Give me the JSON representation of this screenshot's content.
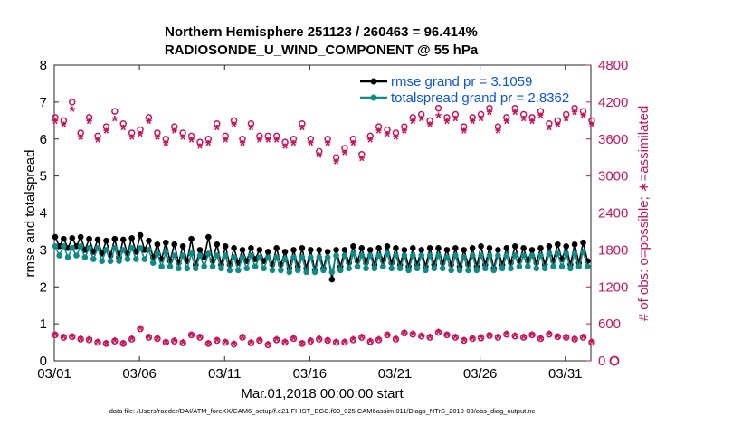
{
  "chart_data": {
    "type": "line",
    "title": "Northern Hemisphere 251123 / 260463 = 96.414%",
    "subtitle": "RADIOSONDE_U_WIND_COMPONENT @ 55 hPa",
    "xlabel": "Mar.01,2018 00:00:00 start",
    "ylabel_left": "rmse and totalspread",
    "ylabel_right": "# of obs: o=possible; ∗=assimilated",
    "footnote": "data file: /Users/raeder/DAI/ATM_forcXX/CAM6_setup/f.e21.FHIST_BGC.f09_025.CAM6assim.011/Diags_NTrS_2018-03/obs_diag_output.nc",
    "x_range_days": [
      0,
      31.5
    ],
    "ylim_left": [
      0,
      8
    ],
    "ylim_right": [
      0,
      4800
    ],
    "x_tick_labels": [
      "03/01",
      "03/06",
      "03/11",
      "03/16",
      "03/21",
      "03/26",
      "03/31"
    ],
    "x_tick_days": [
      0,
      5,
      10,
      15,
      20,
      25,
      30
    ],
    "y_ticks_left": [
      "0",
      "1",
      "2",
      "3",
      "4",
      "5",
      "6",
      "7",
      "8"
    ],
    "y_ticks_right": [
      "0",
      "600",
      "1200",
      "1800",
      "2400",
      "3000",
      "3600",
      "4200",
      "4800"
    ],
    "colors": {
      "rmse": "#000000",
      "spread": "#0e8a8a",
      "obs": "#c8145a",
      "legend_text": "#0d55d8"
    },
    "legend": {
      "rmse": "rmse grand pr = 3.1059",
      "spread": "totalspread grand pr = 2.8362"
    },
    "time_step_days": 0.25,
    "series": [
      {
        "name": "rmse",
        "axis": "left",
        "values": [
          3.35,
          3.1,
          3.3,
          3.05,
          3.32,
          3.1,
          3.35,
          3.0,
          3.3,
          2.95,
          3.28,
          2.9,
          3.25,
          2.85,
          3.3,
          2.8,
          3.28,
          2.9,
          3.32,
          2.95,
          3.4,
          3.0,
          3.25,
          2.8,
          3.15,
          2.75,
          3.2,
          2.7,
          3.15,
          2.65,
          3.1,
          2.7,
          3.3,
          2.6,
          3.0,
          2.8,
          3.35,
          2.7,
          3.15,
          2.6,
          3.1,
          2.6,
          3.05,
          2.65,
          3.0,
          2.7,
          3.05,
          2.75,
          3.0,
          2.7,
          2.95,
          2.6,
          3.05,
          2.6,
          2.95,
          2.5,
          3.0,
          2.55,
          3.05,
          2.5,
          3.0,
          2.45,
          3.0,
          2.5,
          2.95,
          2.2,
          3.0,
          2.55,
          3.0,
          2.65,
          3.1,
          2.7,
          3.05,
          2.65,
          3.0,
          2.6,
          3.05,
          2.7,
          3.1,
          2.65,
          3.05,
          2.6,
          3.0,
          2.55,
          3.05,
          2.6,
          3.0,
          2.55,
          3.05,
          2.6,
          3.05,
          2.65,
          3.0,
          2.6,
          3.05,
          2.55,
          3.0,
          2.6,
          3.05,
          2.55,
          3.1,
          2.6,
          3.05,
          2.5,
          3.0,
          2.6,
          3.05,
          2.65,
          3.1,
          2.7,
          3.05,
          2.7,
          3.0,
          2.65,
          3.05,
          2.6,
          3.1,
          2.7,
          3.15,
          2.75,
          3.1,
          2.6,
          3.15,
          2.65,
          3.2,
          2.7
        ]
      },
      {
        "name": "totalspread",
        "axis": "left",
        "values": [
          3.1,
          2.85,
          3.1,
          2.8,
          3.05,
          2.85,
          3.1,
          2.8,
          3.05,
          2.75,
          3.05,
          2.7,
          3.0,
          2.7,
          3.05,
          2.7,
          3.0,
          2.75,
          3.05,
          2.75,
          3.05,
          2.75,
          3.0,
          2.65,
          2.9,
          2.55,
          2.95,
          2.55,
          2.85,
          2.5,
          2.85,
          2.5,
          2.9,
          2.5,
          2.85,
          2.55,
          2.9,
          2.55,
          2.85,
          2.5,
          2.85,
          2.45,
          2.8,
          2.45,
          2.8,
          2.5,
          2.85,
          2.55,
          2.8,
          2.5,
          2.8,
          2.45,
          2.8,
          2.45,
          2.75,
          2.4,
          2.8,
          2.45,
          2.8,
          2.4,
          2.8,
          2.4,
          2.8,
          2.45,
          2.8,
          2.4,
          2.85,
          2.45,
          2.85,
          2.5,
          2.9,
          2.55,
          2.85,
          2.5,
          2.85,
          2.5,
          2.85,
          2.55,
          2.9,
          2.5,
          2.85,
          2.5,
          2.85,
          2.45,
          2.85,
          2.5,
          2.85,
          2.45,
          2.85,
          2.5,
          2.85,
          2.5,
          2.8,
          2.45,
          2.85,
          2.45,
          2.8,
          2.45,
          2.85,
          2.45,
          2.85,
          2.5,
          2.85,
          2.45,
          2.85,
          2.5,
          2.85,
          2.5,
          2.85,
          2.55,
          2.85,
          2.55,
          2.85,
          2.5,
          2.85,
          2.5,
          2.9,
          2.55,
          2.9,
          2.55,
          2.9,
          2.5,
          2.9,
          2.55,
          2.95,
          2.55
        ]
      },
      {
        "name": "obs_possible",
        "axis": "right",
        "x_step": 0.5,
        "values": [
          3950,
          3900,
          4200,
          3700,
          3950,
          3650,
          3800,
          4050,
          3850,
          3700,
          3750,
          3950,
          3700,
          3600,
          3800,
          3700,
          3650,
          3550,
          3600,
          3850,
          3650,
          3900,
          3600,
          3850,
          3650,
          3650,
          3650,
          3550,
          3600,
          3850,
          3600,
          3400,
          3600,
          3300,
          3450,
          3600,
          3350,
          3650,
          3800,
          3750,
          3700,
          3800,
          3950,
          4000,
          3900,
          4100,
          3950,
          4000,
          3800,
          3950,
          4000,
          4100,
          3800,
          3950,
          4100,
          4000,
          3950,
          4050,
          3850,
          3900,
          4000,
          4100,
          4050,
          3900
        ]
      },
      {
        "name": "obs_assimilated",
        "axis": "right",
        "x_step": 0.5,
        "values": [
          3850,
          3800,
          4050,
          3600,
          3850,
          3550,
          3700,
          3900,
          3750,
          3600,
          3650,
          3850,
          3600,
          3500,
          3700,
          3600,
          3550,
          3450,
          3500,
          3750,
          3550,
          3800,
          3500,
          3750,
          3550,
          3550,
          3550,
          3450,
          3500,
          3750,
          3500,
          3300,
          3500,
          3200,
          3350,
          3500,
          3250,
          3550,
          3700,
          3650,
          3600,
          3700,
          3850,
          3900,
          3800,
          3950,
          3850,
          3900,
          3700,
          3850,
          3900,
          4000,
          3700,
          3850,
          4000,
          3900,
          3850,
          3950,
          3750,
          3800,
          3900,
          4000,
          3950,
          3800
        ]
      },
      {
        "name": "obs_low_possible",
        "axis": "right",
        "x_step": 0.5,
        "values": [
          420,
          380,
          390,
          350,
          340,
          300,
          280,
          320,
          280,
          350,
          520,
          380,
          360,
          300,
          320,
          290,
          420,
          380,
          280,
          330,
          300,
          270,
          380,
          290,
          330,
          260,
          340,
          300,
          360,
          280,
          320,
          350,
          330,
          300,
          300,
          340,
          380,
          310,
          340,
          420,
          350,
          450,
          430,
          400,
          380,
          460,
          420,
          380,
          330,
          360,
          370,
          410,
          380,
          430,
          400,
          380,
          420,
          360,
          430,
          390,
          380,
          350,
          380,
          300
        ]
      },
      {
        "name": "obs_low_assimilated",
        "axis": "right",
        "x_step": 0.5,
        "values": [
          400,
          360,
          370,
          330,
          320,
          280,
          260,
          300,
          260,
          330,
          500,
          360,
          340,
          280,
          300,
          270,
          400,
          360,
          260,
          310,
          280,
          250,
          360,
          270,
          310,
          240,
          320,
          280,
          340,
          260,
          300,
          330,
          310,
          280,
          280,
          320,
          360,
          290,
          320,
          400,
          330,
          430,
          410,
          380,
          360,
          440,
          400,
          360,
          310,
          340,
          350,
          390,
          360,
          410,
          380,
          360,
          400,
          340,
          410,
          370,
          360,
          330,
          360,
          280
        ]
      }
    ]
  }
}
